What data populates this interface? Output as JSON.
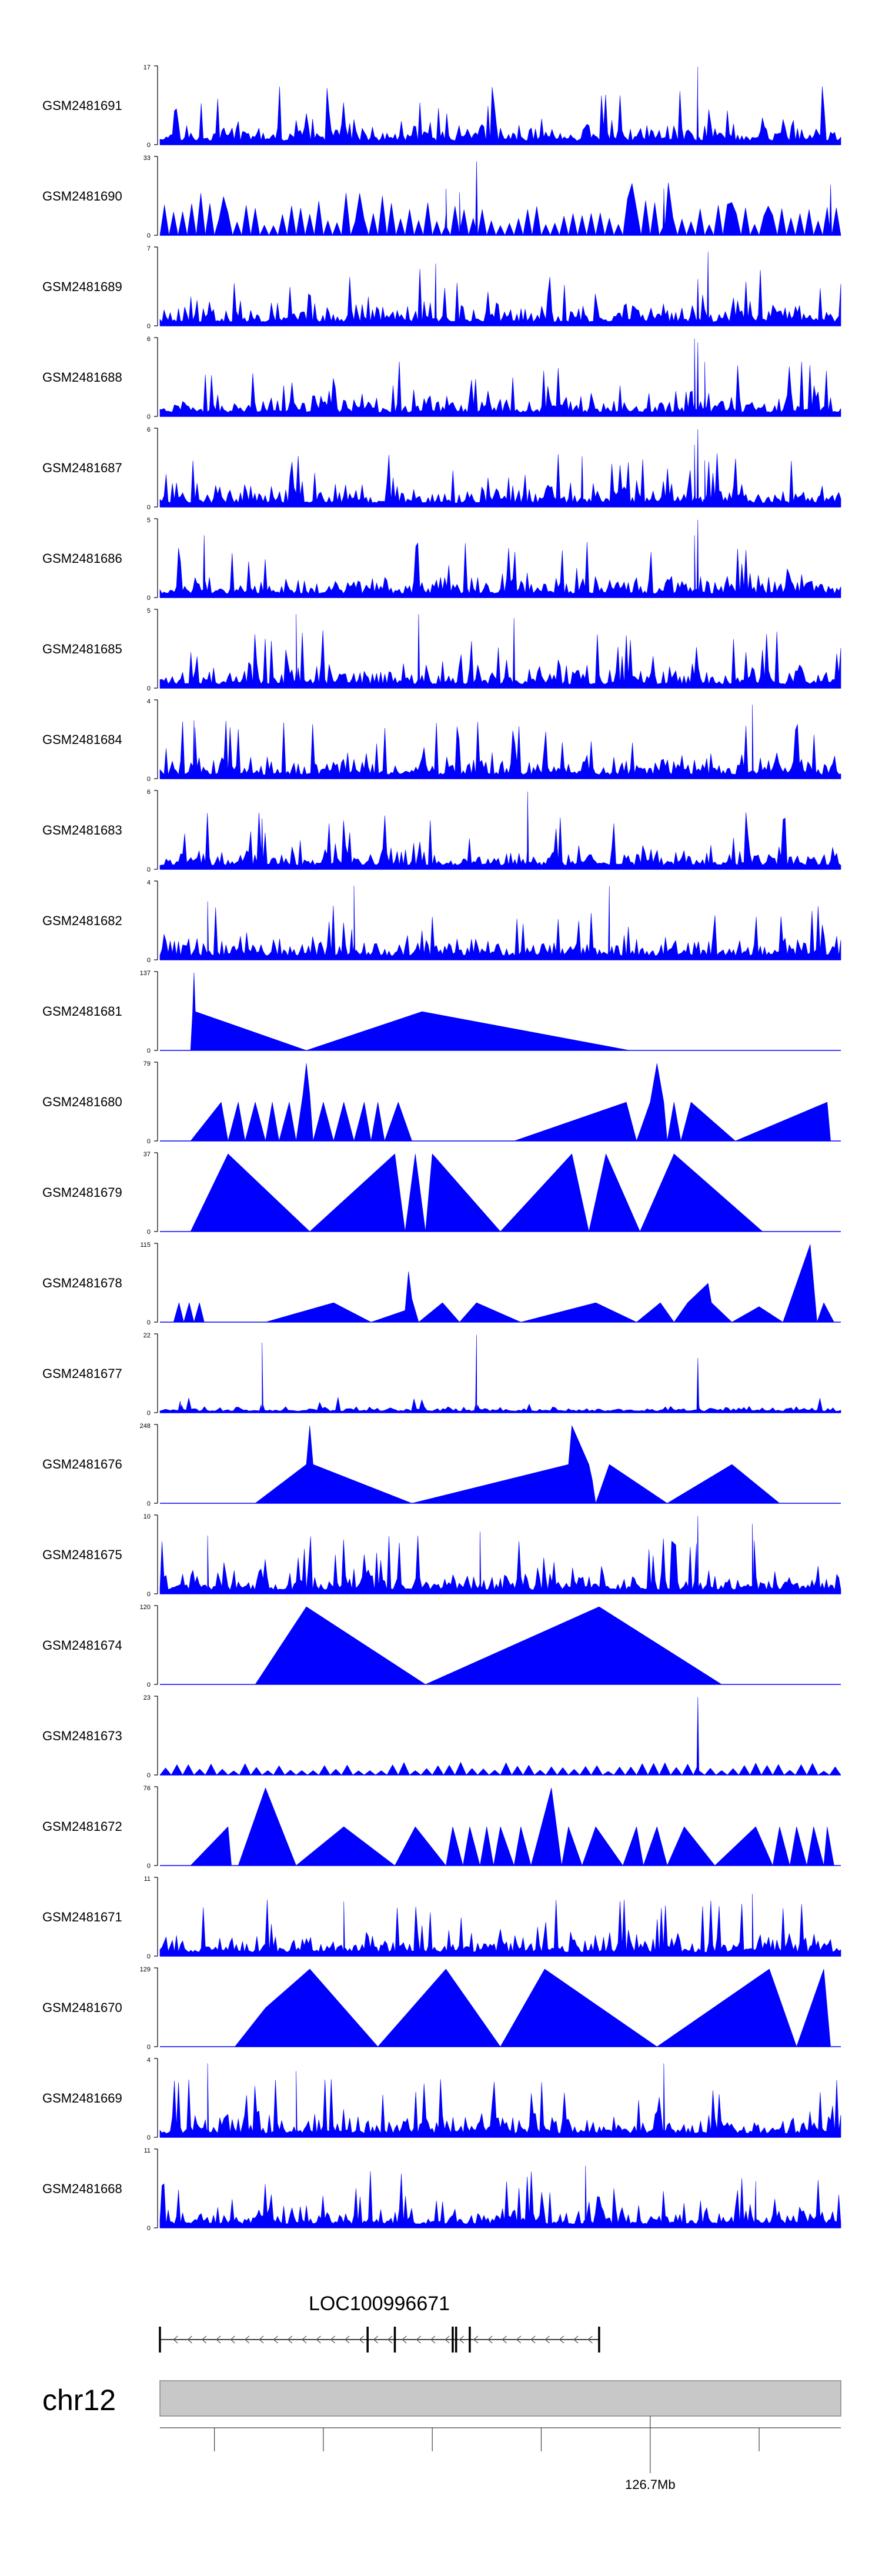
{
  "chart_data": {
    "type": "area",
    "title": "",
    "xlabel": "",
    "ylabel": "",
    "colors": {
      "fill": "#0000ff",
      "axis": "#000000",
      "chrom_band": "#c8c8c8"
    },
    "tracks": [
      {
        "name": "GSM2481691",
        "ymax": "17",
        "ymin": "0",
        "style": "dense",
        "seed": 11,
        "peaks": [
          [
            0.79,
            1.0
          ],
          [
            0.79,
            0.55
          ]
        ]
      },
      {
        "name": "GSM2481690",
        "ymax": "33",
        "ymin": "0",
        "style": "triangles_dense",
        "seed": 12,
        "peaks": [
          [
            0.465,
            0.95
          ],
          [
            0.42,
            0.6
          ],
          [
            0.44,
            0.55
          ],
          [
            0.74,
            0.6
          ],
          [
            0.985,
            0.65
          ]
        ]
      },
      {
        "name": "GSM2481689",
        "ymax": "7",
        "ymin": "0",
        "style": "dense",
        "seed": 13,
        "peaks": [
          [
            0.405,
            0.8
          ],
          [
            0.805,
            0.95
          ],
          [
            0.79,
            0.6
          ]
        ]
      },
      {
        "name": "GSM2481688",
        "ymax": "6",
        "ymin": "0",
        "style": "dense",
        "seed": 14,
        "peaks": [
          [
            0.785,
            1.0
          ],
          [
            0.79,
            0.95
          ],
          [
            0.8,
            0.7
          ]
        ]
      },
      {
        "name": "GSM2481687",
        "ymax": "6",
        "ymin": "0",
        "style": "dense",
        "seed": 15,
        "peaks": [
          [
            0.79,
            1.0
          ],
          [
            0.785,
            0.8
          ],
          [
            0.8,
            0.6
          ],
          [
            0.62,
            0.65
          ]
        ]
      },
      {
        "name": "GSM2481686",
        "ymax": "5",
        "ymin": "0",
        "style": "dense",
        "seed": 16,
        "peaks": [
          [
            0.79,
            1.0
          ],
          [
            0.785,
            0.8
          ],
          [
            0.065,
            0.8
          ]
        ]
      },
      {
        "name": "GSM2481685",
        "ymax": "5",
        "ymin": "0",
        "style": "dense",
        "seed": 17,
        "peaks": [
          [
            0.38,
            0.95
          ],
          [
            0.2,
            0.95
          ],
          [
            0.52,
            0.9
          ]
        ]
      },
      {
        "name": "GSM2481684",
        "ymax": "4",
        "ymin": "0",
        "style": "dense",
        "seed": 18,
        "peaks": [
          [
            0.87,
            0.95
          ],
          [
            0.05,
            0.75
          ]
        ]
      },
      {
        "name": "GSM2481683",
        "ymax": "6",
        "ymin": "0",
        "style": "dense",
        "seed": 19,
        "peaks": [
          [
            0.54,
            1.0
          ],
          [
            0.15,
            0.65
          ]
        ]
      },
      {
        "name": "GSM2481682",
        "ymax": "4",
        "ymin": "0",
        "style": "dense",
        "seed": 20,
        "peaks": [
          [
            0.66,
            0.95
          ],
          [
            0.285,
            0.95
          ],
          [
            0.07,
            0.75
          ]
        ]
      },
      {
        "name": "GSM2481681",
        "ymax": "137",
        "ymin": "0",
        "style": "polyline",
        "points": [
          [
            0.045,
            0
          ],
          [
            0.048,
            0.5
          ],
          [
            0.05,
            1.0
          ],
          [
            0.052,
            0.5
          ],
          [
            0.215,
            0
          ],
          [
            0.385,
            0.5
          ],
          [
            0.69,
            0
          ]
        ]
      },
      {
        "name": "GSM2481680",
        "ymax": "79",
        "ymin": "0",
        "style": "polyline",
        "points": [
          [
            0.045,
            0
          ],
          [
            0.09,
            0.5
          ],
          [
            0.1,
            0
          ],
          [
            0.115,
            0.5
          ],
          [
            0.125,
            0
          ],
          [
            0.14,
            0.5
          ],
          [
            0.155,
            0
          ],
          [
            0.165,
            0.5
          ],
          [
            0.175,
            0
          ],
          [
            0.19,
            0.5
          ],
          [
            0.2,
            0
          ],
          [
            0.21,
            0.6
          ],
          [
            0.215,
            1.0
          ],
          [
            0.22,
            0.6
          ],
          [
            0.225,
            0
          ],
          [
            0.24,
            0.5
          ],
          [
            0.255,
            0
          ],
          [
            0.27,
            0.5
          ],
          [
            0.285,
            0
          ],
          [
            0.3,
            0.5
          ],
          [
            0.31,
            0
          ],
          [
            0.32,
            0.5
          ],
          [
            0.33,
            0
          ],
          [
            0.35,
            0.5
          ],
          [
            0.37,
            0
          ],
          [
            0.52,
            0
          ],
          [
            0.685,
            0.5
          ],
          [
            0.7,
            0
          ],
          [
            0.72,
            0.5
          ],
          [
            0.73,
            1.0
          ],
          [
            0.74,
            0.5
          ],
          [
            0.745,
            0
          ],
          [
            0.755,
            0.5
          ],
          [
            0.765,
            0
          ],
          [
            0.78,
            0.5
          ],
          [
            0.845,
            0
          ],
          [
            0.98,
            0.5
          ],
          [
            0.985,
            0
          ]
        ]
      },
      {
        "name": "GSM2481679",
        "ymax": "37",
        "ymin": "0",
        "style": "polyline",
        "points": [
          [
            0.045,
            0
          ],
          [
            0.1,
            1.0
          ],
          [
            0.22,
            0
          ],
          [
            0.345,
            1.0
          ],
          [
            0.36,
            0
          ],
          [
            0.375,
            1.0
          ],
          [
            0.39,
            0
          ],
          [
            0.4,
            1.0
          ],
          [
            0.5,
            0
          ],
          [
            0.605,
            1.0
          ],
          [
            0.63,
            0
          ],
          [
            0.655,
            1.0
          ],
          [
            0.705,
            0
          ],
          [
            0.755,
            1.0
          ],
          [
            0.885,
            0
          ]
        ]
      },
      {
        "name": "GSM2481678",
        "ymax": "115",
        "ymin": "0",
        "style": "polyline",
        "points": [
          [
            0.02,
            0
          ],
          [
            0.028,
            0.25
          ],
          [
            0.035,
            0
          ],
          [
            0.043,
            0.25
          ],
          [
            0.05,
            0
          ],
          [
            0.058,
            0.25
          ],
          [
            0.065,
            0
          ],
          [
            0.155,
            0
          ],
          [
            0.255,
            0.25
          ],
          [
            0.31,
            0
          ],
          [
            0.36,
            0.15
          ],
          [
            0.365,
            0.65
          ],
          [
            0.37,
            0.3
          ],
          [
            0.38,
            0
          ],
          [
            0.415,
            0.25
          ],
          [
            0.44,
            0
          ],
          [
            0.465,
            0.25
          ],
          [
            0.53,
            0
          ],
          [
            0.64,
            0.25
          ],
          [
            0.7,
            0
          ],
          [
            0.735,
            0.25
          ],
          [
            0.755,
            0
          ],
          [
            0.775,
            0.25
          ],
          [
            0.805,
            0.5
          ],
          [
            0.81,
            0.25
          ],
          [
            0.84,
            0
          ],
          [
            0.88,
            0.2
          ],
          [
            0.915,
            0
          ],
          [
            0.955,
            1.0
          ],
          [
            0.965,
            0
          ],
          [
            0.975,
            0.25
          ],
          [
            0.99,
            0
          ]
        ]
      },
      {
        "name": "GSM2481677",
        "ymax": "22",
        "ymin": "0",
        "style": "sparse",
        "seed": 21,
        "peaks": [
          [
            0.465,
            1.0
          ],
          [
            0.15,
            0.9
          ],
          [
            0.79,
            0.7
          ],
          [
            0.03,
            0.15
          ]
        ]
      },
      {
        "name": "GSM2481676",
        "ymax": "248",
        "ymin": "0",
        "style": "polyline",
        "points": [
          [
            0.045,
            0
          ],
          [
            0.14,
            0
          ],
          [
            0.215,
            0.5
          ],
          [
            0.22,
            1.0
          ],
          [
            0.225,
            0.5
          ],
          [
            0.37,
            0
          ],
          [
            0.6,
            0.5
          ],
          [
            0.605,
            1.0
          ],
          [
            0.63,
            0.5
          ],
          [
            0.635,
            0.3
          ],
          [
            0.64,
            0
          ],
          [
            0.66,
            0.5
          ],
          [
            0.745,
            0
          ],
          [
            0.84,
            0.5
          ],
          [
            0.91,
            0
          ]
        ]
      },
      {
        "name": "GSM2481675",
        "ymax": "10",
        "ymin": "0",
        "style": "dense",
        "seed": 22,
        "peaks": [
          [
            0.79,
            1.0
          ],
          [
            0.47,
            0.8
          ],
          [
            0.07,
            0.75
          ],
          [
            0.87,
            0.9
          ]
        ]
      },
      {
        "name": "GSM2481674",
        "ymax": "120",
        "ymin": "0",
        "style": "polyline",
        "points": [
          [
            0.045,
            0
          ],
          [
            0.14,
            0
          ],
          [
            0.215,
            1.0
          ],
          [
            0.39,
            0
          ],
          [
            0.645,
            1.0
          ],
          [
            0.825,
            0
          ]
        ]
      },
      {
        "name": "GSM2481673",
        "ymax": "23",
        "ymin": "0",
        "style": "small_triangles",
        "seed": 23,
        "peaks": [
          [
            0.79,
            1.0
          ]
        ]
      },
      {
        "name": "GSM2481672",
        "ymax": "76",
        "ymin": "0",
        "style": "polyline",
        "points": [
          [
            0.045,
            0
          ],
          [
            0.1,
            0.5
          ],
          [
            0.105,
            0
          ],
          [
            0.115,
            0
          ],
          [
            0.155,
            1.0
          ],
          [
            0.2,
            0
          ],
          [
            0.27,
            0.5
          ],
          [
            0.345,
            0
          ],
          [
            0.375,
            0.5
          ],
          [
            0.42,
            0
          ],
          [
            0.43,
            0.5
          ],
          [
            0.445,
            0
          ],
          [
            0.455,
            0.5
          ],
          [
            0.47,
            0
          ],
          [
            0.48,
            0.5
          ],
          [
            0.49,
            0
          ],
          [
            0.5,
            0.5
          ],
          [
            0.52,
            0
          ],
          [
            0.53,
            0.5
          ],
          [
            0.545,
            0
          ],
          [
            0.575,
            1.0
          ],
          [
            0.59,
            0
          ],
          [
            0.6,
            0.5
          ],
          [
            0.62,
            0
          ],
          [
            0.64,
            0.5
          ],
          [
            0.68,
            0
          ],
          [
            0.7,
            0.5
          ],
          [
            0.71,
            0
          ],
          [
            0.73,
            0.5
          ],
          [
            0.745,
            0
          ],
          [
            0.77,
            0.5
          ],
          [
            0.815,
            0
          ],
          [
            0.875,
            0.5
          ],
          [
            0.9,
            0
          ],
          [
            0.91,
            0.5
          ],
          [
            0.925,
            0
          ],
          [
            0.935,
            0.5
          ],
          [
            0.95,
            0
          ],
          [
            0.96,
            0.5
          ],
          [
            0.975,
            0
          ],
          [
            0.98,
            0.5
          ],
          [
            0.99,
            0
          ]
        ]
      },
      {
        "name": "GSM2481671",
        "ymax": "11",
        "ymin": "0",
        "style": "dense",
        "seed": 24,
        "peaks": [
          [
            0.27,
            0.7
          ],
          [
            0.87,
            0.8
          ]
        ]
      },
      {
        "name": "GSM2481670",
        "ymax": "129",
        "ymin": "0",
        "style": "polyline",
        "points": [
          [
            0.045,
            0
          ],
          [
            0.11,
            0
          ],
          [
            0.155,
            0.5
          ],
          [
            0.22,
            1.0
          ],
          [
            0.32,
            0
          ],
          [
            0.42,
            1.0
          ],
          [
            0.5,
            0
          ],
          [
            0.565,
            1.0
          ],
          [
            0.73,
            0
          ],
          [
            0.895,
            1.0
          ],
          [
            0.935,
            0
          ],
          [
            0.975,
            1.0
          ],
          [
            0.985,
            0
          ]
        ]
      },
      {
        "name": "GSM2481669",
        "ymax": "4",
        "ymin": "0",
        "style": "dense",
        "seed": 25,
        "peaks": [
          [
            0.07,
            0.95
          ],
          [
            0.2,
            0.85
          ],
          [
            0.74,
            0.95
          ]
        ]
      },
      {
        "name": "GSM2481668",
        "ymax": "11",
        "ymin": "0",
        "style": "dense",
        "seed": 26,
        "peaks": [
          [
            0.625,
            0.8
          ],
          [
            0.875,
            0.6
          ]
        ]
      }
    ],
    "gene": {
      "label": "LOC100996671",
      "start": 0.0,
      "end": 0.645,
      "exons": [
        0.0,
        0.305,
        0.345,
        0.43,
        0.435,
        0.455,
        0.645
      ],
      "strand": "-"
    },
    "chromosome": {
      "label": "chr12",
      "tick_label": "126.7Mb",
      "ticks": [
        0.08,
        0.24,
        0.4,
        0.56,
        0.88
      ],
      "labeled_tick": 0.72
    }
  }
}
